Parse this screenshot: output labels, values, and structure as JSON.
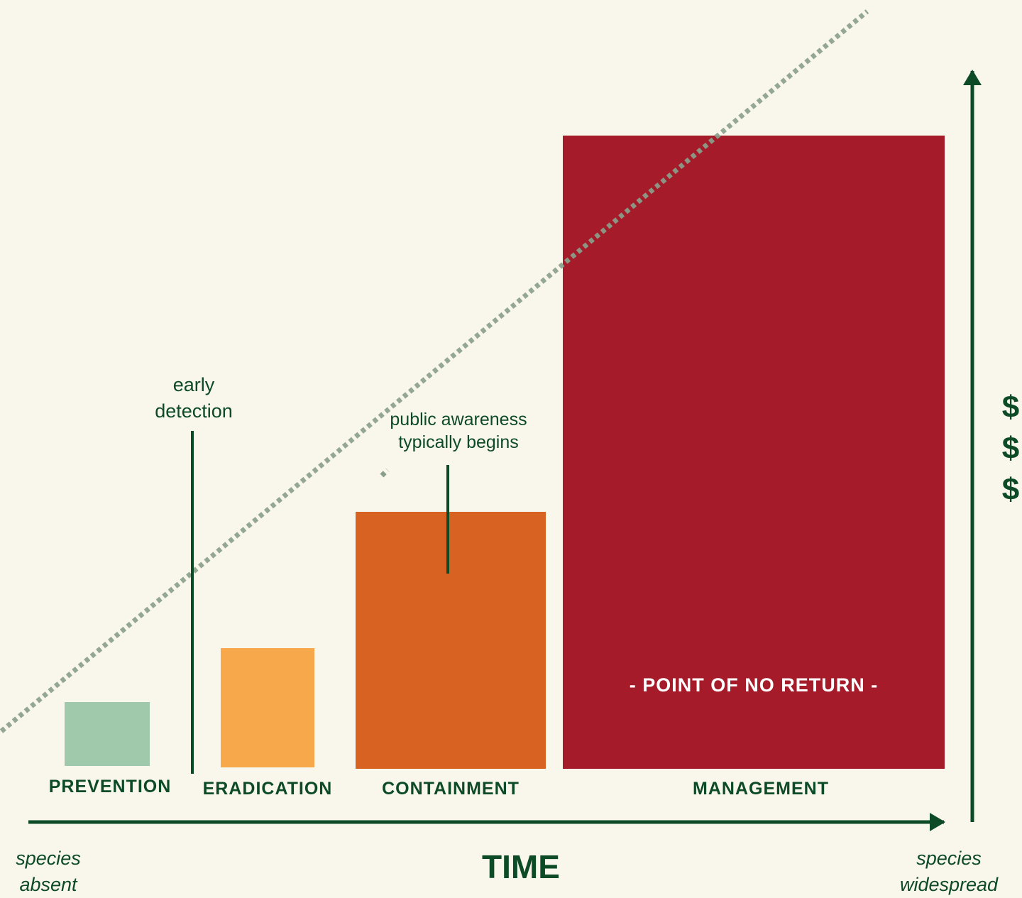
{
  "colors": {
    "background": "#f9f6ec",
    "dark_green": "#0d4a26",
    "prevention": "#a0c9ab",
    "eradication": "#f7a84a",
    "containment": "#d76221",
    "management": "#a51b29",
    "dotted_line": "#8fa88f",
    "white_text": "#ffffff"
  },
  "stages": [
    {
      "id": "prevention",
      "label": "PREVENTION"
    },
    {
      "id": "eradication",
      "label": "ERADICATION"
    },
    {
      "id": "containment",
      "label": "CONTAINMENT"
    },
    {
      "id": "management",
      "label": "MANAGEMENT"
    }
  ],
  "annotations": {
    "early_detection": [
      "early",
      "detection"
    ],
    "public_awareness": [
      "public awareness",
      "typically begins"
    ],
    "point_of_no_return": "- POINT OF NO RETURN -"
  },
  "axes": {
    "x_title": "TIME",
    "x_start": [
      "species",
      "absent"
    ],
    "x_end": [
      "species",
      "widespread"
    ],
    "y_symbols": [
      "$",
      "$",
      "$"
    ]
  }
}
